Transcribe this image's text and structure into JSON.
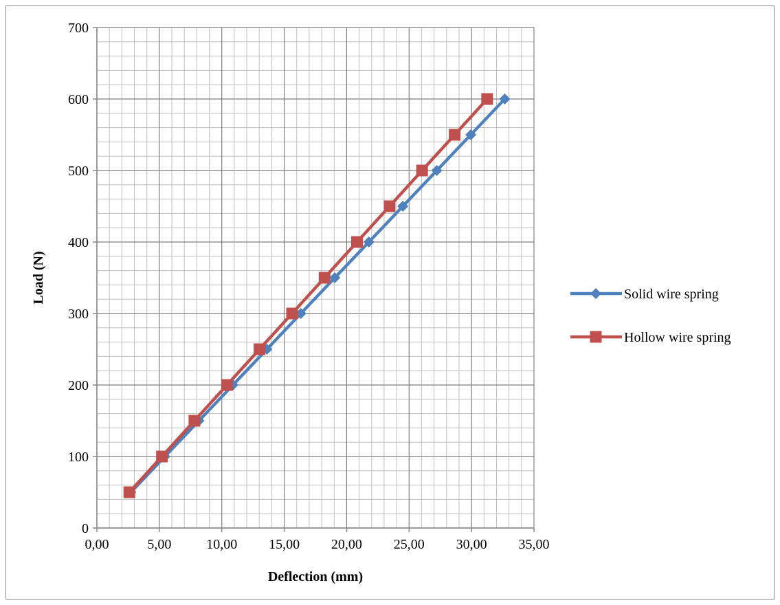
{
  "chart_data": {
    "type": "line",
    "title": "",
    "xlabel": "Deflection (mm)",
    "ylabel": "Load (N)",
    "xlim": [
      0,
      35
    ],
    "ylim": [
      0,
      700
    ],
    "x_ticks": [
      "0,00",
      "5,00",
      "10,00",
      "15,00",
      "20,00",
      "25,00",
      "30,00",
      "35,00"
    ],
    "y_ticks": [
      "0",
      "100",
      "200",
      "300",
      "400",
      "500",
      "600",
      "700"
    ],
    "grid": true,
    "legend_position": "right",
    "series": [
      {
        "name": "Solid wire spring",
        "color": "#4f81bd",
        "marker": "diamond",
        "x": [
          2.72,
          5.44,
          8.17,
          10.89,
          13.61,
          16.33,
          19.05,
          21.78,
          24.5,
          27.22,
          29.94,
          32.66
        ],
        "y": [
          50,
          100,
          150,
          200,
          250,
          300,
          350,
          400,
          450,
          500,
          550,
          600
        ]
      },
      {
        "name": "Hollow wire spring",
        "color": "#c0504d",
        "marker": "square",
        "x": [
          2.6,
          5.21,
          7.81,
          10.42,
          13.02,
          15.63,
          18.23,
          20.83,
          23.44,
          26.04,
          28.65,
          31.25
        ],
        "y": [
          50,
          100,
          150,
          200,
          250,
          300,
          350,
          400,
          450,
          500,
          550,
          600
        ]
      }
    ]
  }
}
